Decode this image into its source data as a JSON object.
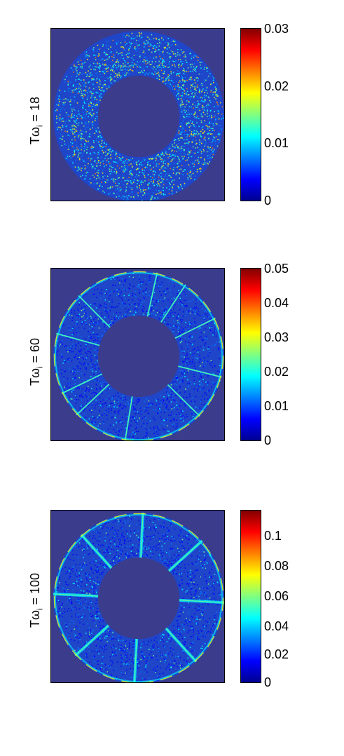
{
  "figure": {
    "colormap": [
      "#00008f",
      "#0000ff",
      "#0080ff",
      "#00ffff",
      "#80ff80",
      "#ffff00",
      "#ff8000",
      "#ff0000",
      "#800000"
    ],
    "background_color": "#3c3c8c",
    "ring_base_color": "#1f45c8"
  },
  "chart_data": [
    {
      "type": "heatmap",
      "ylabel": {
        "main": "Tω",
        "sub": "i",
        "tail": " = 18"
      },
      "clim": [
        0,
        0.03
      ],
      "colorbar_ticks": [
        "0.03",
        "0.02",
        "0.01",
        "0"
      ],
      "pattern": "uniform noise over annular gap",
      "seed": 11,
      "streaks": 0
    },
    {
      "type": "heatmap",
      "ylabel": {
        "main": "Tω",
        "sub": "i",
        "tail": " = 60"
      },
      "clim": [
        0,
        0.05
      ],
      "colorbar_ticks": [
        "0.05",
        "0.04",
        "0.03",
        "0.02",
        "0.01",
        "0"
      ],
      "pattern": "noise with thin radial streaks and bright outer edge",
      "seed": 23,
      "streaks": 10
    },
    {
      "type": "heatmap",
      "ylabel": {
        "main": "Tω",
        "sub": "i",
        "tail": " = 100"
      },
      "clim": [
        0,
        0.115
      ],
      "colorbar_ticks": [
        "0.1",
        "0.08",
        "0.06",
        "0.04",
        "0.02",
        "0"
      ],
      "pattern": "eight radial plume structures with bright outer wall",
      "seed": 37,
      "streaks": 8
    }
  ]
}
